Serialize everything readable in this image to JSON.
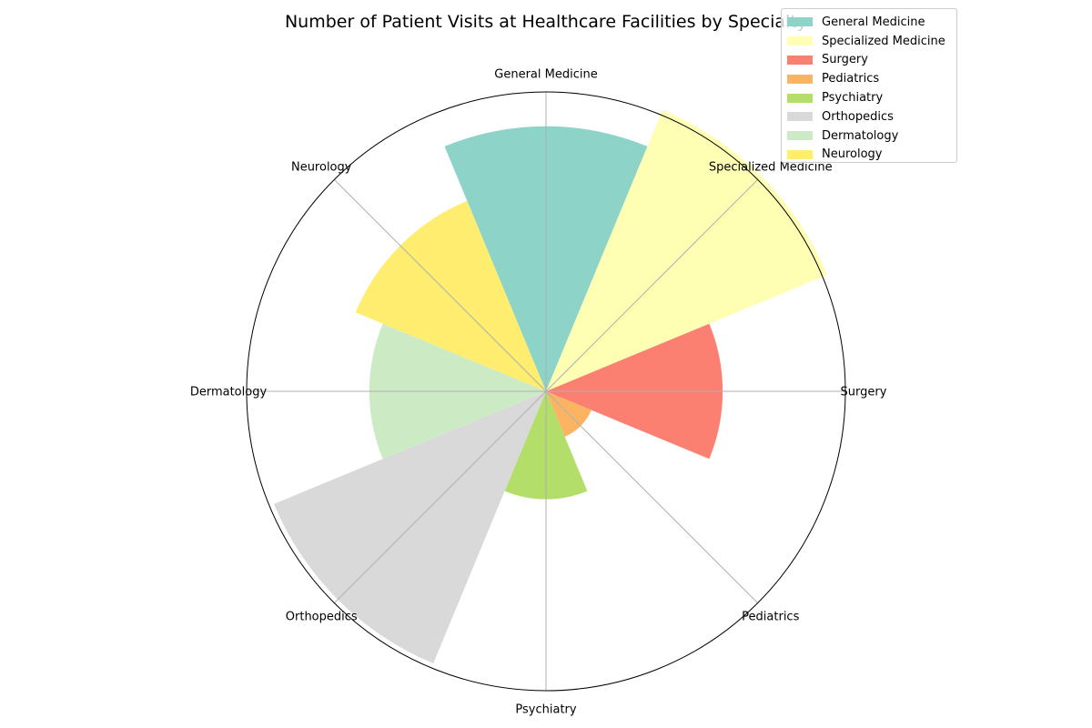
{
  "chart_data": {
    "type": "polar-bar",
    "title": "Number of Patient Visits at Healthcare Facilities by Specialty",
    "categories": [
      "General Medicine",
      "Specialized Medicine",
      "Surgery",
      "Pediatrics",
      "Psychiatry",
      "Orthopedics",
      "Dermatology",
      "Neurology"
    ],
    "values": [
      270,
      310,
      180,
      50,
      110,
      300,
      180,
      210
    ],
    "colors": [
      "#8dd3c7",
      "#ffffb3",
      "#fb8072",
      "#fdb462",
      "#b3de69",
      "#d9d9d9",
      "#ccebc5",
      "#ffed6f"
    ],
    "rmax": 305,
    "grid": true,
    "legend": "top-right"
  }
}
